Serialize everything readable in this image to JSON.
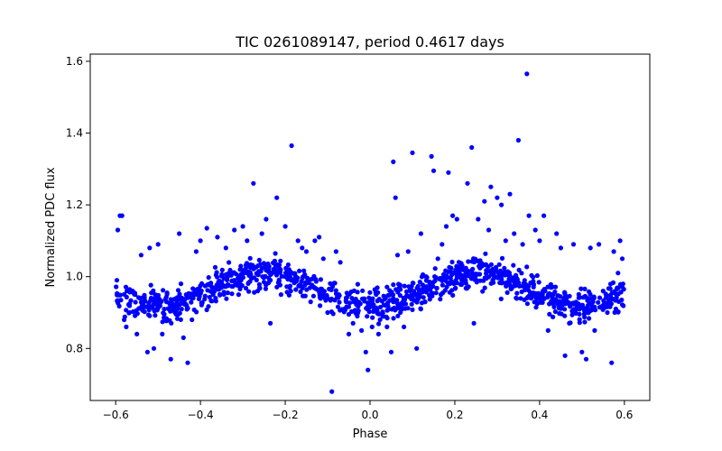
{
  "chart_data": {
    "type": "scatter",
    "title": "TIC 0261089147, period 0.4617 days",
    "xlabel": "Phase",
    "ylabel": "Normalized PDC flux",
    "xlim": [
      -0.66,
      0.66
    ],
    "ylim": [
      0.655,
      1.62
    ],
    "x_ticks": [
      -0.6,
      -0.4,
      -0.2,
      0.0,
      0.2,
      0.4,
      0.6
    ],
    "x_tick_labels": [
      "−0.6",
      "−0.4",
      "−0.2",
      "0.0",
      "0.2",
      "0.4",
      "0.6"
    ],
    "y_ticks": [
      0.8,
      1.0,
      1.2,
      1.4,
      1.6
    ],
    "y_tick_labels": [
      "0.8",
      "1.0",
      "1.2",
      "1.4",
      "1.6"
    ],
    "grid": false,
    "legend": "none",
    "marker_color": "#0000ff",
    "series": [
      {
        "points": [
          [
            -0.595,
            1.13
          ],
          [
            -0.59,
            1.17
          ],
          [
            -0.585,
            1.17
          ],
          [
            -0.58,
            0.88
          ],
          [
            -0.575,
            0.86
          ],
          [
            -0.56,
            0.96
          ],
          [
            -0.55,
            0.84
          ],
          [
            -0.54,
            1.06
          ],
          [
            -0.535,
            0.92
          ],
          [
            -0.525,
            0.79
          ],
          [
            -0.52,
            1.08
          ],
          [
            -0.51,
            0.8
          ],
          [
            -0.5,
            1.09
          ],
          [
            -0.49,
            0.84
          ],
          [
            -0.48,
            0.93
          ],
          [
            -0.47,
            0.77
          ],
          [
            -0.46,
            0.9
          ],
          [
            -0.45,
            1.12
          ],
          [
            -0.44,
            0.83
          ],
          [
            -0.43,
            0.76
          ],
          [
            -0.42,
            0.88
          ],
          [
            -0.41,
            1.07
          ],
          [
            -0.4,
            1.1
          ],
          [
            -0.385,
            1.135
          ],
          [
            -0.37,
            0.95
          ],
          [
            -0.36,
            1.11
          ],
          [
            -0.35,
            0.97
          ],
          [
            -0.34,
            1.08
          ],
          [
            -0.32,
            1.13
          ],
          [
            -0.31,
            0.95
          ],
          [
            -0.3,
            1.14
          ],
          [
            -0.29,
            1.1
          ],
          [
            -0.275,
            1.26
          ],
          [
            -0.265,
            0.96
          ],
          [
            -0.255,
            1.12
          ],
          [
            -0.245,
            1.16
          ],
          [
            -0.235,
            0.87
          ],
          [
            -0.22,
            1.22
          ],
          [
            -0.21,
            0.95
          ],
          [
            -0.2,
            1.14
          ],
          [
            -0.19,
            0.97
          ],
          [
            -0.185,
            1.365
          ],
          [
            -0.17,
            1.1
          ],
          [
            -0.16,
            1.08
          ],
          [
            -0.15,
            1.07
          ],
          [
            -0.14,
            0.93
          ],
          [
            -0.13,
            1.1
          ],
          [
            -0.12,
            1.11
          ],
          [
            -0.11,
            1.05
          ],
          [
            -0.1,
            0.9
          ],
          [
            -0.09,
            0.68
          ],
          [
            -0.08,
            1.07
          ],
          [
            -0.07,
            1.04
          ],
          [
            -0.06,
            0.91
          ],
          [
            -0.05,
            0.84
          ],
          [
            -0.04,
            0.87
          ],
          [
            -0.03,
            0.89
          ],
          [
            -0.02,
            0.85
          ],
          [
            -0.01,
            0.79
          ],
          [
            -0.005,
            0.74
          ],
          [
            0.005,
            0.86
          ],
          [
            0.01,
            0.91
          ],
          [
            0.02,
            0.84
          ],
          [
            0.03,
            0.89
          ],
          [
            0.04,
            0.86
          ],
          [
            0.05,
            0.79
          ],
          [
            0.055,
            1.32
          ],
          [
            0.06,
            1.22
          ],
          [
            0.065,
            1.06
          ],
          [
            0.07,
            0.97
          ],
          [
            0.08,
            0.86
          ],
          [
            0.09,
            1.07
          ],
          [
            0.1,
            1.345
          ],
          [
            0.11,
            0.8
          ],
          [
            0.12,
            1.12
          ],
          [
            0.13,
            0.93
          ],
          [
            0.145,
            1.335
          ],
          [
            0.15,
            1.295
          ],
          [
            0.16,
            1.05
          ],
          [
            0.17,
            1.09
          ],
          [
            0.18,
            1.14
          ],
          [
            0.185,
            1.29
          ],
          [
            0.195,
            1.17
          ],
          [
            0.205,
            1.16
          ],
          [
            0.22,
            0.99
          ],
          [
            0.23,
            1.26
          ],
          [
            0.24,
            1.36
          ],
          [
            0.245,
            0.87
          ],
          [
            0.255,
            1.16
          ],
          [
            0.27,
            1.21
          ],
          [
            0.28,
            1.13
          ],
          [
            0.285,
            1.25
          ],
          [
            0.3,
            1.22
          ],
          [
            0.31,
            1.2
          ],
          [
            0.32,
            1.1
          ],
          [
            0.33,
            1.23
          ],
          [
            0.34,
            1.12
          ],
          [
            0.35,
            1.38
          ],
          [
            0.36,
            1.09
          ],
          [
            0.37,
            1.565
          ],
          [
            0.375,
            1.17
          ],
          [
            0.38,
            0.94
          ],
          [
            0.39,
            1.13
          ],
          [
            0.4,
            1.1
          ],
          [
            0.41,
            1.17
          ],
          [
            0.42,
            0.85
          ],
          [
            0.43,
            0.94
          ],
          [
            0.44,
            1.12
          ],
          [
            0.45,
            1.08
          ],
          [
            0.46,
            0.78
          ],
          [
            0.47,
            0.87
          ],
          [
            0.48,
            1.09
          ],
          [
            0.49,
            0.92
          ],
          [
            0.5,
            0.79
          ],
          [
            0.51,
            0.77
          ],
          [
            0.52,
            1.08
          ],
          [
            0.53,
            0.85
          ],
          [
            0.54,
            1.09
          ],
          [
            0.55,
            0.96
          ],
          [
            0.56,
            0.9
          ],
          [
            0.57,
            0.76
          ],
          [
            0.575,
            1.07
          ],
          [
            0.58,
            0.91
          ],
          [
            0.585,
            1.01
          ],
          [
            0.59,
            1.1
          ],
          [
            0.595,
            1.05
          ]
        ]
      }
    ]
  }
}
